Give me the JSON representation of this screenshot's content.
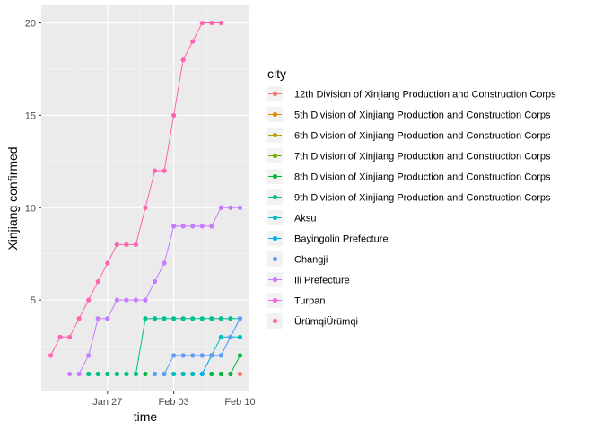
{
  "chart_data": {
    "type": "line",
    "xlabel": "time",
    "ylabel": "Xinjiang confirmed",
    "x_ticks": [
      "Jan 27",
      "Feb 03",
      "Feb 10"
    ],
    "y_ticks": [
      5,
      10,
      15,
      20
    ],
    "legend_title": "city",
    "legend_position": "right",
    "grid": true,
    "colors": {
      "panel_background": "#ebebeb",
      "grid": "#ffffff"
    },
    "series": [
      {
        "name": "12th Division of Xinjiang Production and Construction Corps",
        "color": "#F8766D",
        "points": [
          [
            "2020-02-07",
            1
          ],
          [
            "2020-02-08",
            1
          ],
          [
            "2020-02-09",
            1
          ],
          [
            "2020-02-10",
            1
          ]
        ]
      },
      {
        "name": "5th Division of Xinjiang Production and Construction Corps",
        "color": "#DE8C00",
        "points": []
      },
      {
        "name": "6th Division of Xinjiang Production and Construction Corps",
        "color": "#B79F00",
        "points": []
      },
      {
        "name": "7th Division of Xinjiang Production and Construction Corps",
        "color": "#7CAE00",
        "points": []
      },
      {
        "name": "8th Division of Xinjiang Production and Construction Corps",
        "color": "#00BA38",
        "points": [
          [
            "2020-01-25",
            1
          ],
          [
            "2020-01-26",
            1
          ],
          [
            "2020-01-27",
            1
          ],
          [
            "2020-01-28",
            1
          ],
          [
            "2020-01-29",
            1
          ],
          [
            "2020-01-30",
            1
          ],
          [
            "2020-01-31",
            1
          ],
          [
            "2020-02-01",
            1
          ],
          [
            "2020-02-02",
            1
          ],
          [
            "2020-02-03",
            1
          ],
          [
            "2020-02-04",
            1
          ],
          [
            "2020-02-05",
            1
          ],
          [
            "2020-02-06",
            1
          ],
          [
            "2020-02-07",
            1
          ],
          [
            "2020-02-08",
            1
          ],
          [
            "2020-02-09",
            1
          ],
          [
            "2020-02-10",
            2
          ]
        ]
      },
      {
        "name": "9th Division of Xinjiang Production and Construction Corps",
        "color": "#00C08B",
        "points": [
          [
            "2020-01-25",
            1
          ],
          [
            "2020-01-26",
            1
          ],
          [
            "2020-01-27",
            1
          ],
          [
            "2020-01-28",
            1
          ],
          [
            "2020-01-29",
            1
          ],
          [
            "2020-01-30",
            1
          ],
          [
            "2020-01-31",
            4
          ],
          [
            "2020-02-01",
            4
          ],
          [
            "2020-02-02",
            4
          ],
          [
            "2020-02-03",
            4
          ],
          [
            "2020-02-04",
            4
          ],
          [
            "2020-02-05",
            4
          ],
          [
            "2020-02-06",
            4
          ],
          [
            "2020-02-07",
            4
          ],
          [
            "2020-02-08",
            4
          ],
          [
            "2020-02-09",
            4
          ],
          [
            "2020-02-10",
            4
          ]
        ]
      },
      {
        "name": "Aksu",
        "color": "#00BFC4",
        "points": [
          [
            "2020-02-03",
            1
          ],
          [
            "2020-02-04",
            1
          ],
          [
            "2020-02-05",
            1
          ],
          [
            "2020-02-06",
            1
          ],
          [
            "2020-02-07",
            2
          ],
          [
            "2020-02-08",
            3
          ],
          [
            "2020-02-09",
            3
          ],
          [
            "2020-02-10",
            3
          ]
        ]
      },
      {
        "name": "Bayingolin Prefecture",
        "color": "#00B4F0",
        "points": [
          [
            "2020-02-06",
            1
          ],
          [
            "2020-02-07",
            2
          ],
          [
            "2020-02-08",
            2
          ],
          [
            "2020-02-09",
            3
          ],
          [
            "2020-02-10",
            4
          ]
        ]
      },
      {
        "name": "Changji",
        "color": "#619CFF",
        "points": [
          [
            "2020-02-01",
            1
          ],
          [
            "2020-02-02",
            1
          ],
          [
            "2020-02-03",
            2
          ],
          [
            "2020-02-04",
            2
          ],
          [
            "2020-02-05",
            2
          ],
          [
            "2020-02-06",
            2
          ],
          [
            "2020-02-07",
            2
          ],
          [
            "2020-02-08",
            2
          ],
          [
            "2020-02-09",
            3
          ],
          [
            "2020-02-10",
            4
          ]
        ]
      },
      {
        "name": "Ili Prefecture",
        "color": "#C77CFF",
        "points": [
          [
            "2020-01-23",
            1
          ],
          [
            "2020-01-24",
            1
          ],
          [
            "2020-01-25",
            2
          ],
          [
            "2020-01-26",
            4
          ],
          [
            "2020-01-27",
            4
          ],
          [
            "2020-01-28",
            5
          ],
          [
            "2020-01-29",
            5
          ],
          [
            "2020-01-30",
            5
          ],
          [
            "2020-01-31",
            5
          ],
          [
            "2020-02-01",
            6
          ],
          [
            "2020-02-02",
            7
          ],
          [
            "2020-02-03",
            9
          ],
          [
            "2020-02-04",
            9
          ],
          [
            "2020-02-05",
            9
          ],
          [
            "2020-02-06",
            9
          ],
          [
            "2020-02-07",
            9
          ],
          [
            "2020-02-08",
            10
          ],
          [
            "2020-02-09",
            10
          ],
          [
            "2020-02-10",
            10
          ]
        ]
      },
      {
        "name": "Turpan",
        "color": "#F564E3",
        "points": []
      },
      {
        "name": "ÜrümqiÜrümqi",
        "color": "#FF64B0",
        "points": [
          [
            "2020-01-21",
            2
          ],
          [
            "2020-01-22",
            3
          ],
          [
            "2020-01-23",
            3
          ],
          [
            "2020-01-24",
            4
          ],
          [
            "2020-01-25",
            5
          ],
          [
            "2020-01-26",
            6
          ],
          [
            "2020-01-27",
            7
          ],
          [
            "2020-01-28",
            8
          ],
          [
            "2020-01-29",
            8
          ],
          [
            "2020-01-30",
            8
          ],
          [
            "2020-01-31",
            10
          ],
          [
            "2020-02-01",
            12
          ],
          [
            "2020-02-02",
            12
          ],
          [
            "2020-02-03",
            15
          ],
          [
            "2020-02-04",
            18
          ],
          [
            "2020-02-05",
            19
          ],
          [
            "2020-02-06",
            20
          ],
          [
            "2020-02-07",
            20
          ],
          [
            "2020-02-08",
            20
          ]
        ]
      }
    ]
  }
}
